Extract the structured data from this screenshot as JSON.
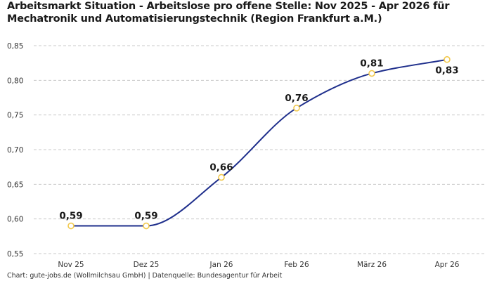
{
  "title_lines": [
    "Arbeitsmarkt Situation - Arbeitslose pro offene Stelle: Nov 2025 - Apr 2026 für",
    "Mechatronik und Automatisierungstechnik (Region Frankfurt a.M.)"
  ],
  "source": "Chart: gute-jobs.de (Wollmilchsau GmbH) | Datenquelle: Bundesagentur für Arbeit",
  "colors": {
    "line": "#1f2f8c",
    "marker_stroke": "#f2c94c",
    "marker_fill": "#ffffff",
    "grid": "#c8c8c8"
  },
  "chart_data": {
    "type": "line",
    "title": "Arbeitsmarkt Situation - Arbeitslose pro offene Stelle: Nov 2025 - Apr 2026 für Mechatronik und Automatisierungstechnik (Region Frankfurt a.M.)",
    "categories": [
      "Nov 25",
      "Dez 25",
      "Jan 26",
      "Feb 26",
      "März 26",
      "Apr 26"
    ],
    "values": [
      0.59,
      0.59,
      0.66,
      0.76,
      0.81,
      0.83
    ],
    "data_labels": [
      "0,59",
      "0,59",
      "0,66",
      "0,76",
      "0,81",
      "0,83"
    ],
    "label_placement": [
      "above",
      "above",
      "above",
      "above",
      "above",
      "below"
    ],
    "ylim": [
      0.55,
      0.85
    ],
    "yticks": [
      0.55,
      0.6,
      0.65,
      0.7,
      0.75,
      0.8,
      0.85
    ],
    "ytick_labels": [
      "0,55",
      "0,60",
      "0,65",
      "0,70",
      "0,75",
      "0,80",
      "0,85"
    ],
    "xlabel": "",
    "ylabel": "",
    "grid": "horizontal dashed",
    "curve": "smooth"
  }
}
